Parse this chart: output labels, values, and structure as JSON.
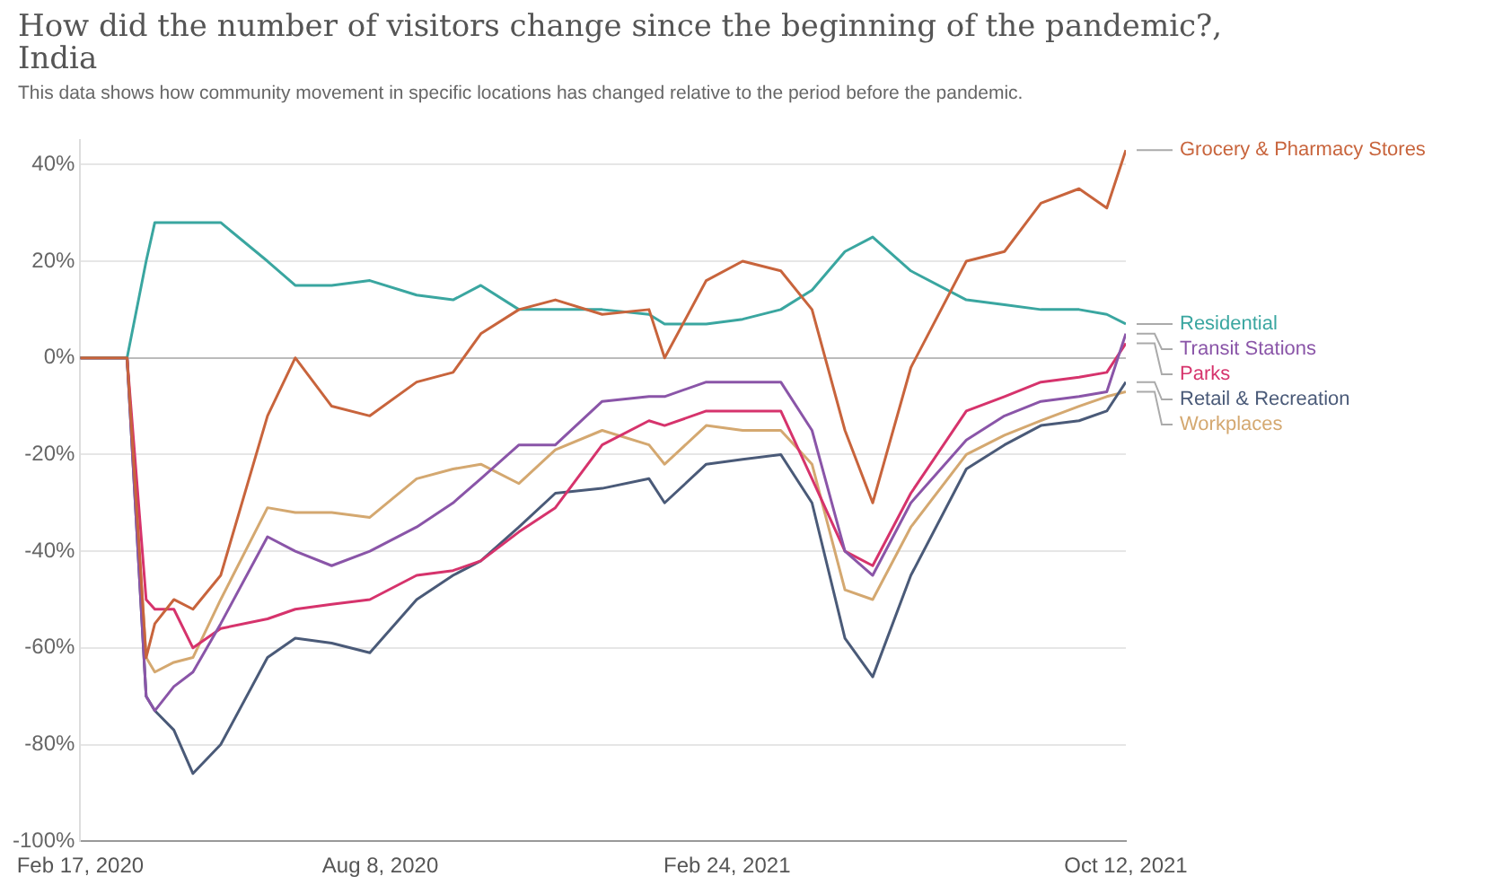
{
  "chart_data": {
    "type": "line",
    "title": "How did the number of visitors change since the beginning of the pandemic?, India",
    "subtitle": "This data shows how community movement in specific locations has changed relative to the period before the pandemic.",
    "x": [
      "2020-02-17",
      "2020-03-15",
      "2020-03-26",
      "2020-03-31",
      "2020-04-11",
      "2020-04-22",
      "2020-05-08",
      "2020-06-04",
      "2020-06-20",
      "2020-07-11",
      "2020-08-02",
      "2020-08-29",
      "2020-09-19",
      "2020-10-05",
      "2020-10-27",
      "2020-11-17",
      "2020-12-14",
      "2021-01-10",
      "2021-01-19",
      "2021-02-12",
      "2021-03-05",
      "2021-03-27",
      "2021-04-14",
      "2021-05-03",
      "2021-05-19",
      "2021-06-10",
      "2021-07-12",
      "2021-08-03",
      "2021-08-24",
      "2021-09-15",
      "2021-10-01",
      "2021-10-12"
    ],
    "series": [
      {
        "name": "Grocery & Pharmacy Stores",
        "color": "#c8643c",
        "values": [
          0,
          0,
          -62,
          -55,
          -50,
          -52,
          -45,
          -12,
          0,
          -10,
          -12,
          -5,
          -3,
          5,
          10,
          12,
          9,
          10,
          0,
          16,
          20,
          18,
          10,
          -15,
          -30,
          -2,
          20,
          22,
          32,
          35,
          31,
          43
        ]
      },
      {
        "name": "Residential",
        "color": "#3aa6a0",
        "values": [
          0,
          0,
          20,
          28,
          28,
          28,
          28,
          20,
          15,
          15,
          16,
          13,
          12,
          15,
          10,
          10,
          10,
          9,
          7,
          7,
          8,
          10,
          14,
          22,
          25,
          18,
          12,
          11,
          10,
          10,
          9,
          7
        ]
      },
      {
        "name": "Transit Stations",
        "color": "#8a55a8",
        "values": [
          0,
          0,
          -70,
          -73,
          -68,
          -65,
          -55,
          -37,
          -40,
          -43,
          -40,
          -35,
          -30,
          -25,
          -18,
          -18,
          -9,
          -8,
          -8,
          -5,
          -5,
          -5,
          -15,
          -40,
          -45,
          -30,
          -17,
          -12,
          -9,
          -8,
          -7,
          5
        ]
      },
      {
        "name": "Parks",
        "color": "#d6336c",
        "values": [
          0,
          0,
          -50,
          -52,
          -52,
          -60,
          -56,
          -54,
          -52,
          -51,
          -50,
          -45,
          -44,
          -42,
          -36,
          -31,
          -18,
          -13,
          -14,
          -11,
          -11,
          -11,
          -25,
          -40,
          -43,
          -28,
          -11,
          -8,
          -5,
          -4,
          -3,
          3
        ]
      },
      {
        "name": "Retail & Recreation",
        "color": "#4a5a78",
        "values": [
          0,
          0,
          -70,
          -73,
          -77,
          -86,
          -80,
          -62,
          -58,
          -59,
          -61,
          -50,
          -45,
          -42,
          -35,
          -28,
          -27,
          -25,
          -30,
          -22,
          -21,
          -20,
          -30,
          -58,
          -66,
          -45,
          -23,
          -18,
          -14,
          -13,
          -11,
          -5
        ]
      },
      {
        "name": "Workplaces",
        "color": "#d4a870",
        "values": [
          0,
          0,
          -62,
          -65,
          -63,
          -62,
          -50,
          -31,
          -32,
          -32,
          -33,
          -25,
          -23,
          -22,
          -26,
          -19,
          -15,
          -18,
          -22,
          -14,
          -15,
          -15,
          -22,
          -48,
          -50,
          -35,
          -20,
          -16,
          -13,
          -10,
          -8,
          -7
        ]
      }
    ],
    "xlim": [
      "2020-02-17",
      "2021-10-12"
    ],
    "xticks": [
      {
        "value": "2020-02-17",
        "label": "Feb 17, 2020"
      },
      {
        "value": "2020-08-08",
        "label": "Aug 8, 2020"
      },
      {
        "value": "2021-02-24",
        "label": "Feb 24, 2021"
      },
      {
        "value": "2021-10-12",
        "label": "Oct 12, 2021"
      }
    ],
    "ylim": [
      -100,
      45
    ],
    "yticks": [
      {
        "value": -100,
        "label": "-100%"
      },
      {
        "value": -80,
        "label": "-80%"
      },
      {
        "value": -60,
        "label": "-60%"
      },
      {
        "value": -40,
        "label": "-40%"
      },
      {
        "value": -20,
        "label": "-20%"
      },
      {
        "value": 0,
        "label": "0%"
      },
      {
        "value": 20,
        "label": "20%"
      },
      {
        "value": 40,
        "label": "40%"
      }
    ],
    "grid": "y",
    "legend": "right",
    "marker": "none",
    "line_style": "solid"
  }
}
